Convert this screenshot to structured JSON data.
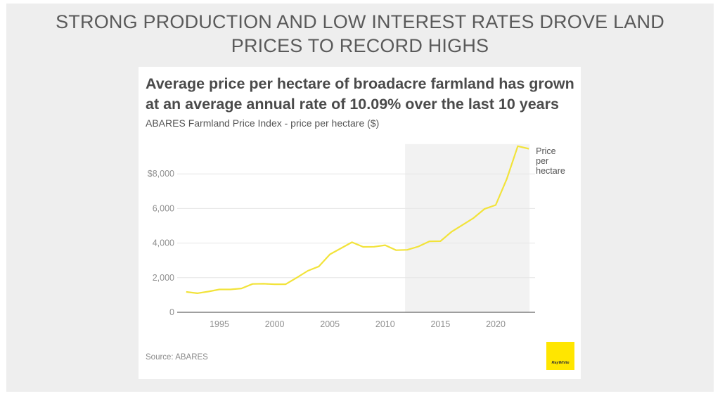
{
  "slide": {
    "title_line1": "STRONG PRODUCTION AND LOW INTEREST RATES DROVE LAND",
    "title_line2": "PRICES TO RECORD HIGHS"
  },
  "card": {
    "title_line1": "Average price per hectare of broadacre farmland has grown",
    "title_line2": "at an average annual rate of 10.09% over the last 10 years",
    "subtitle": "ABARES Farmland Price Index - price per hectare ($)",
    "source": "Source: ABARES",
    "logo_text": "RayWhite",
    "logo_color": "#ffe600"
  },
  "chart_data": {
    "type": "line",
    "title": "Average price per hectare of broadacre farmland has grown at an average annual rate of 10.09% over the last 10 years",
    "subtitle": "ABARES Farmland Price Index - price per hectare ($)",
    "xlabel": "",
    "ylabel": "",
    "xlim": [
      1992,
      2023
    ],
    "ylim": [
      0,
      9600
    ],
    "x_ticks": [
      1995,
      2000,
      2005,
      2010,
      2015,
      2020
    ],
    "x_tick_labels": [
      "1995",
      "2000",
      "2005",
      "2010",
      "2015",
      "2020"
    ],
    "y_ticks": [
      0,
      2000,
      4000,
      6000,
      8000
    ],
    "y_tick_labels": [
      "0",
      "2,000",
      "4,000",
      "6,000",
      "$8,000"
    ],
    "grid": true,
    "highlight_region": {
      "x_start": 2011.8,
      "x_end": 2023,
      "color": "#f2f2f2"
    },
    "series": [
      {
        "name": "Price per hectare",
        "label_lines": [
          "Price",
          "per",
          "hectare"
        ],
        "color": "#f2e33a",
        "x": [
          1992,
          1993,
          1994,
          1995,
          1996,
          1997,
          1998,
          1999,
          2000,
          2001,
          2002,
          2003,
          2004,
          2005,
          2006,
          2007,
          2008,
          2009,
          2010,
          2011,
          2012,
          2013,
          2014,
          2015,
          2016,
          2017,
          2018,
          2019,
          2020,
          2021,
          2022,
          2023
        ],
        "values": [
          1180,
          1100,
          1200,
          1320,
          1320,
          1380,
          1640,
          1650,
          1620,
          1620,
          2000,
          2400,
          2650,
          3350,
          3700,
          4050,
          3780,
          3790,
          3880,
          3590,
          3610,
          3800,
          4100,
          4110,
          4650,
          5050,
          5450,
          5980,
          6200,
          7700,
          9600,
          9450
        ]
      }
    ],
    "legend": "end-of-line label, right"
  }
}
